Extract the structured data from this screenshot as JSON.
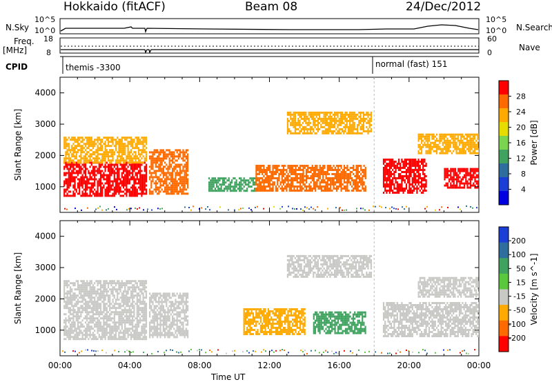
{
  "header": {
    "station": "Hokkaido (fitACF)",
    "beam": "Beam 08",
    "date": "24/Dec/2012"
  },
  "strip_panels": {
    "nsky_label": "N.Sky",
    "nsky_ticks": [
      "10^5",
      "10^0"
    ],
    "nsearch_label": "N.Search",
    "nsearch_ticks": [
      "10^5",
      "10^0"
    ],
    "freq_label": "Freq.",
    "freq_unit": "[MHz]",
    "freq_ticks": [
      "18",
      "8"
    ],
    "nave_label": "Nave",
    "nave_ticks": [
      "60",
      "0"
    ],
    "cpid_label": "CPID",
    "cpid_segments": [
      {
        "label": "themis -3300",
        "start_hour": 0.0
      },
      {
        "label": "normal (fast) 151",
        "start_hour": 18.0
      }
    ]
  },
  "chart_data": [
    {
      "type": "heatmap",
      "name": "power-panel",
      "xlabel": "",
      "ylabel": "Slant Range [km]",
      "x_range_hours": [
        0,
        24
      ],
      "ylim": [
        180,
        4500
      ],
      "y_ticks": [
        "4000",
        "3000",
        "2000",
        "1000"
      ],
      "colorbar_label": "Power [dB]",
      "colorbar_ticks": [
        "28",
        "24",
        "20",
        "16",
        "12",
        "8",
        "4"
      ],
      "colorbar_colors": [
        "#ff0000",
        "#ff6a00",
        "#ffaa00",
        "#e6dc00",
        "#7ad44f",
        "#3fa35f",
        "#2e6e9e",
        "#1a3fd6",
        "#0000e0"
      ],
      "colorbar_levels": [
        28,
        24,
        20,
        16,
        12,
        8,
        4
      ],
      "regions": [
        {
          "t": [
            0.2,
            4.9
          ],
          "r": [
            700,
            1800
          ],
          "level": 28
        },
        {
          "t": [
            0.2,
            4.9
          ],
          "r": [
            1800,
            2600
          ],
          "level": 20
        },
        {
          "t": [
            5.1,
            7.3
          ],
          "r": [
            800,
            2200
          ],
          "level": 26
        },
        {
          "t": [
            8.5,
            11.2
          ],
          "r": [
            900,
            1300
          ],
          "level": 10
        },
        {
          "t": [
            11.2,
            17.5
          ],
          "r": [
            900,
            1700
          ],
          "level": 26
        },
        {
          "t": [
            13.0,
            17.8
          ],
          "r": [
            2700,
            3400
          ],
          "level": 20
        },
        {
          "t": [
            18.5,
            21.0
          ],
          "r": [
            800,
            1900
          ],
          "level": 28
        },
        {
          "t": [
            20.5,
            24.0
          ],
          "r": [
            2100,
            2700
          ],
          "level": 20
        },
        {
          "t": [
            22.0,
            24.0
          ],
          "r": [
            1000,
            1600
          ],
          "level": 28
        }
      ]
    },
    {
      "type": "heatmap",
      "name": "velocity-panel",
      "xlabel": "Time UT",
      "ylabel": "Slant Range [km]",
      "x_range_hours": [
        0,
        24
      ],
      "x_ticks": [
        "00:00",
        "04:00",
        "08:00",
        "12:00",
        "16:00",
        "20:00",
        "00:00"
      ],
      "ylim": [
        180,
        4500
      ],
      "y_ticks": [
        "4000",
        "3000",
        "2000",
        "1000"
      ],
      "colorbar_label": "Velocity [m s^-1]",
      "colorbar_ticks": [
        "200",
        "100",
        "50",
        "15",
        "-15",
        "-50",
        "-100",
        "-200"
      ],
      "colorbar_colors": [
        "#1a3fd6",
        "#2e6e9e",
        "#3fa35f",
        "#5ac83c",
        "#c8c8c4",
        "#ffaa00",
        "#ff6a00",
        "#ff0000"
      ],
      "regions": [
        {
          "t": [
            0.2,
            4.9
          ],
          "r": [
            700,
            2600
          ],
          "value": 0
        },
        {
          "t": [
            5.1,
            7.3
          ],
          "r": [
            800,
            2200
          ],
          "value": 0
        },
        {
          "t": [
            10.5,
            14.0
          ],
          "r": [
            900,
            1700
          ],
          "value": -40
        },
        {
          "t": [
            14.5,
            17.5
          ],
          "r": [
            900,
            1600
          ],
          "value": 40
        },
        {
          "t": [
            13.0,
            17.8
          ],
          "r": [
            2700,
            3400
          ],
          "value": 0
        },
        {
          "t": [
            18.5,
            24.0
          ],
          "r": [
            800,
            1900
          ],
          "value": 0
        },
        {
          "t": [
            20.5,
            24.0
          ],
          "r": [
            2100,
            2700
          ],
          "value": 0
        }
      ]
    }
  ]
}
